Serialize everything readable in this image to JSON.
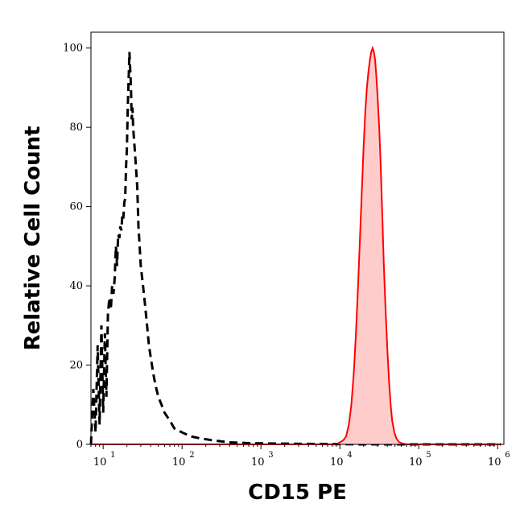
{
  "chart_data": {
    "type": "area",
    "xlabel": "CD15 PE",
    "ylabel": "Relative Cell Count",
    "x_scale": "log",
    "xlim": [
      7,
      1200000
    ],
    "ylim": [
      0,
      104
    ],
    "x_ticks": [
      {
        "base": "10",
        "exp": "1",
        "value": 10
      },
      {
        "base": "10",
        "exp": "2",
        "value": 100
      },
      {
        "base": "10",
        "exp": "3",
        "value": 1000
      },
      {
        "base": "10",
        "exp": "4",
        "value": 10000
      },
      {
        "base": "10",
        "exp": "5",
        "value": 100000
      },
      {
        "base": "10",
        "exp": "6",
        "value": 1000000
      }
    ],
    "y_ticks": [
      0,
      20,
      40,
      60,
      80,
      100
    ],
    "series": [
      {
        "style": "dashed",
        "color": "#000000",
        "points": [
          [
            7,
            0
          ],
          [
            7.5,
            14
          ],
          [
            8,
            3
          ],
          [
            8.5,
            25
          ],
          [
            9,
            5
          ],
          [
            9.5,
            30
          ],
          [
            10,
            8
          ],
          [
            10.5,
            28
          ],
          [
            11,
            12
          ],
          [
            11.5,
            33
          ],
          [
            12,
            37
          ],
          [
            12.5,
            34
          ],
          [
            13,
            40
          ],
          [
            13.5,
            38
          ],
          [
            14,
            42
          ],
          [
            14.5,
            50
          ],
          [
            15,
            45
          ],
          [
            15.5,
            53
          ],
          [
            16,
            52
          ],
          [
            16.5,
            55
          ],
          [
            17,
            54
          ],
          [
            17.5,
            58
          ],
          [
            18,
            57
          ],
          [
            18.5,
            61
          ],
          [
            19,
            62
          ],
          [
            19.5,
            70
          ],
          [
            20,
            75
          ],
          [
            20.5,
            85
          ],
          [
            21,
            92
          ],
          [
            21.5,
            99
          ],
          [
            22,
            95
          ],
          [
            22.5,
            90
          ],
          [
            23,
            82
          ],
          [
            23.5,
            85
          ],
          [
            24,
            80
          ],
          [
            25,
            75
          ],
          [
            26,
            70
          ],
          [
            27,
            65
          ],
          [
            28,
            55
          ],
          [
            29,
            50
          ],
          [
            30,
            45
          ],
          [
            32,
            40
          ],
          [
            34,
            35
          ],
          [
            36,
            30
          ],
          [
            38,
            25
          ],
          [
            40,
            22
          ],
          [
            43,
            18
          ],
          [
            46,
            15
          ],
          [
            50,
            12
          ],
          [
            55,
            10
          ],
          [
            60,
            8
          ],
          [
            70,
            6
          ],
          [
            80,
            4
          ],
          [
            100,
            3
          ],
          [
            130,
            2
          ],
          [
            170,
            1.5
          ],
          [
            250,
            1
          ],
          [
            400,
            0.5
          ],
          [
            700,
            0.3
          ],
          [
            1500,
            0.2
          ],
          [
            5000,
            0.1
          ],
          [
            20000,
            0
          ],
          [
            100000,
            0
          ],
          [
            1100000,
            0
          ]
        ]
      },
      {
        "style": "filled",
        "color": "#ff0000",
        "fill": "#ffcccc",
        "points": [
          [
            7,
            0
          ],
          [
            9000,
            0
          ],
          [
            10000,
            0.5
          ],
          [
            11000,
            1
          ],
          [
            12000,
            2
          ],
          [
            13000,
            5
          ],
          [
            14000,
            10
          ],
          [
            15000,
            18
          ],
          [
            16000,
            28
          ],
          [
            17000,
            40
          ],
          [
            18000,
            52
          ],
          [
            19000,
            64
          ],
          [
            20000,
            75
          ],
          [
            21000,
            84
          ],
          [
            22000,
            90
          ],
          [
            23000,
            94
          ],
          [
            24000,
            97
          ],
          [
            25000,
            99
          ],
          [
            26000,
            100
          ],
          [
            27000,
            99
          ],
          [
            28000,
            97
          ],
          [
            29000,
            93
          ],
          [
            30000,
            88
          ],
          [
            31500,
            80
          ],
          [
            33000,
            70
          ],
          [
            34500,
            58
          ],
          [
            36000,
            46
          ],
          [
            38000,
            34
          ],
          [
            40000,
            24
          ],
          [
            42000,
            16
          ],
          [
            44000,
            10
          ],
          [
            46000,
            6
          ],
          [
            49000,
            3
          ],
          [
            52000,
            1.5
          ],
          [
            56000,
            0.6
          ],
          [
            62000,
            0.2
          ],
          [
            70000,
            0
          ],
          [
            1100000,
            0
          ]
        ]
      }
    ]
  }
}
